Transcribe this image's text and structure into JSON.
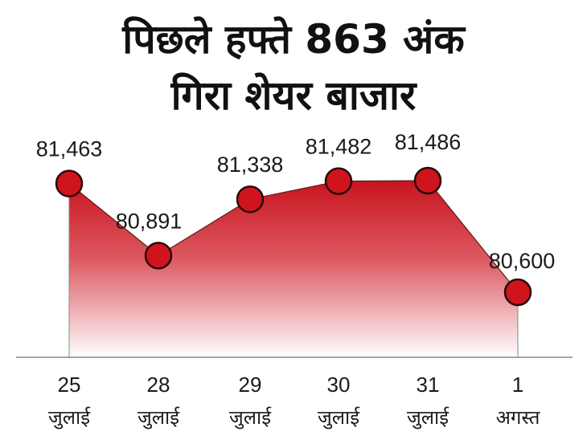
{
  "title_line1": "पिछले हफ्ते 863 अंक",
  "title_line2": "गिरा शेयर बाजार",
  "chart_data": {
    "type": "area",
    "categories": [
      {
        "day": "25",
        "month": "जुलाई"
      },
      {
        "day": "28",
        "month": "जुलाई"
      },
      {
        "day": "29",
        "month": "जुलाई"
      },
      {
        "day": "30",
        "month": "जुलाई"
      },
      {
        "day": "31",
        "month": "जुलाई"
      },
      {
        "day": "1",
        "month": "अगस्त"
      }
    ],
    "values": [
      81463,
      80891,
      81338,
      81482,
      81486,
      80600
    ],
    "labels": [
      "81,463",
      "80,891",
      "81,338",
      "81,482",
      "81,486",
      "80,600"
    ],
    "colors": {
      "fill_top": "#c8141e",
      "fill_bottom": "#ffffff",
      "marker": "#d0141e",
      "marker_stroke": "#2a0a0a",
      "axis": "#888888"
    }
  }
}
